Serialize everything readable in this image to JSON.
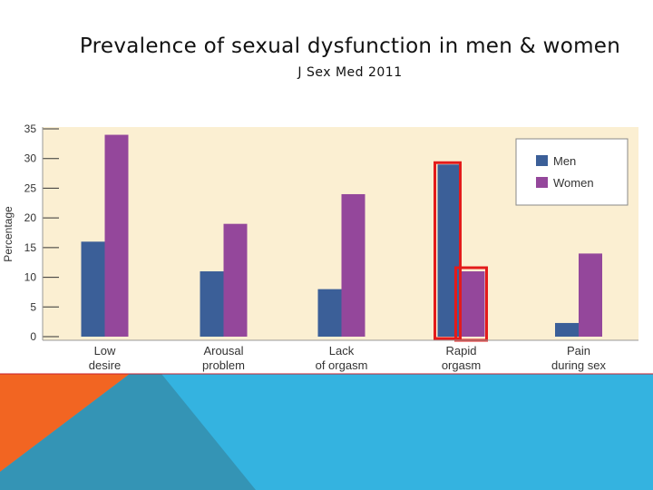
{
  "slide": {
    "title": "Prevalence of sexual dysfunction in men & women",
    "subtitle": "J Sex Med 2011"
  },
  "colors": {
    "men": "#3B5F98",
    "women": "#94479B",
    "plot_background": "#FBEFD2",
    "highlight": "#E31B1B",
    "orange": "#F26522",
    "blue_light": "#34B3E0",
    "blue_dark": "#3494B5"
  },
  "chart_data": {
    "type": "bar",
    "title": "",
    "xlabel": "",
    "ylabel": "Percentage",
    "ylim": [
      0,
      35
    ],
    "yticks": [
      0,
      5,
      10,
      15,
      20,
      25,
      30,
      35
    ],
    "grid": false,
    "legend_position": "top-right",
    "categories": [
      [
        "Low",
        "desire"
      ],
      [
        "Arousal",
        "problem"
      ],
      [
        "Lack",
        "of orgasm"
      ],
      [
        "Rapid",
        "orgasm"
      ],
      [
        "Pain",
        "during sex"
      ]
    ],
    "series": [
      {
        "name": "Men",
        "values": [
          16,
          11,
          8,
          29,
          2.3
        ]
      },
      {
        "name": "Women",
        "values": [
          34,
          19,
          24,
          11,
          14
        ]
      }
    ],
    "annotations": [
      {
        "type": "highlight-box",
        "category_index": 3,
        "series": "Men"
      },
      {
        "type": "highlight-box",
        "category_index": 3,
        "series": "Women"
      }
    ]
  }
}
